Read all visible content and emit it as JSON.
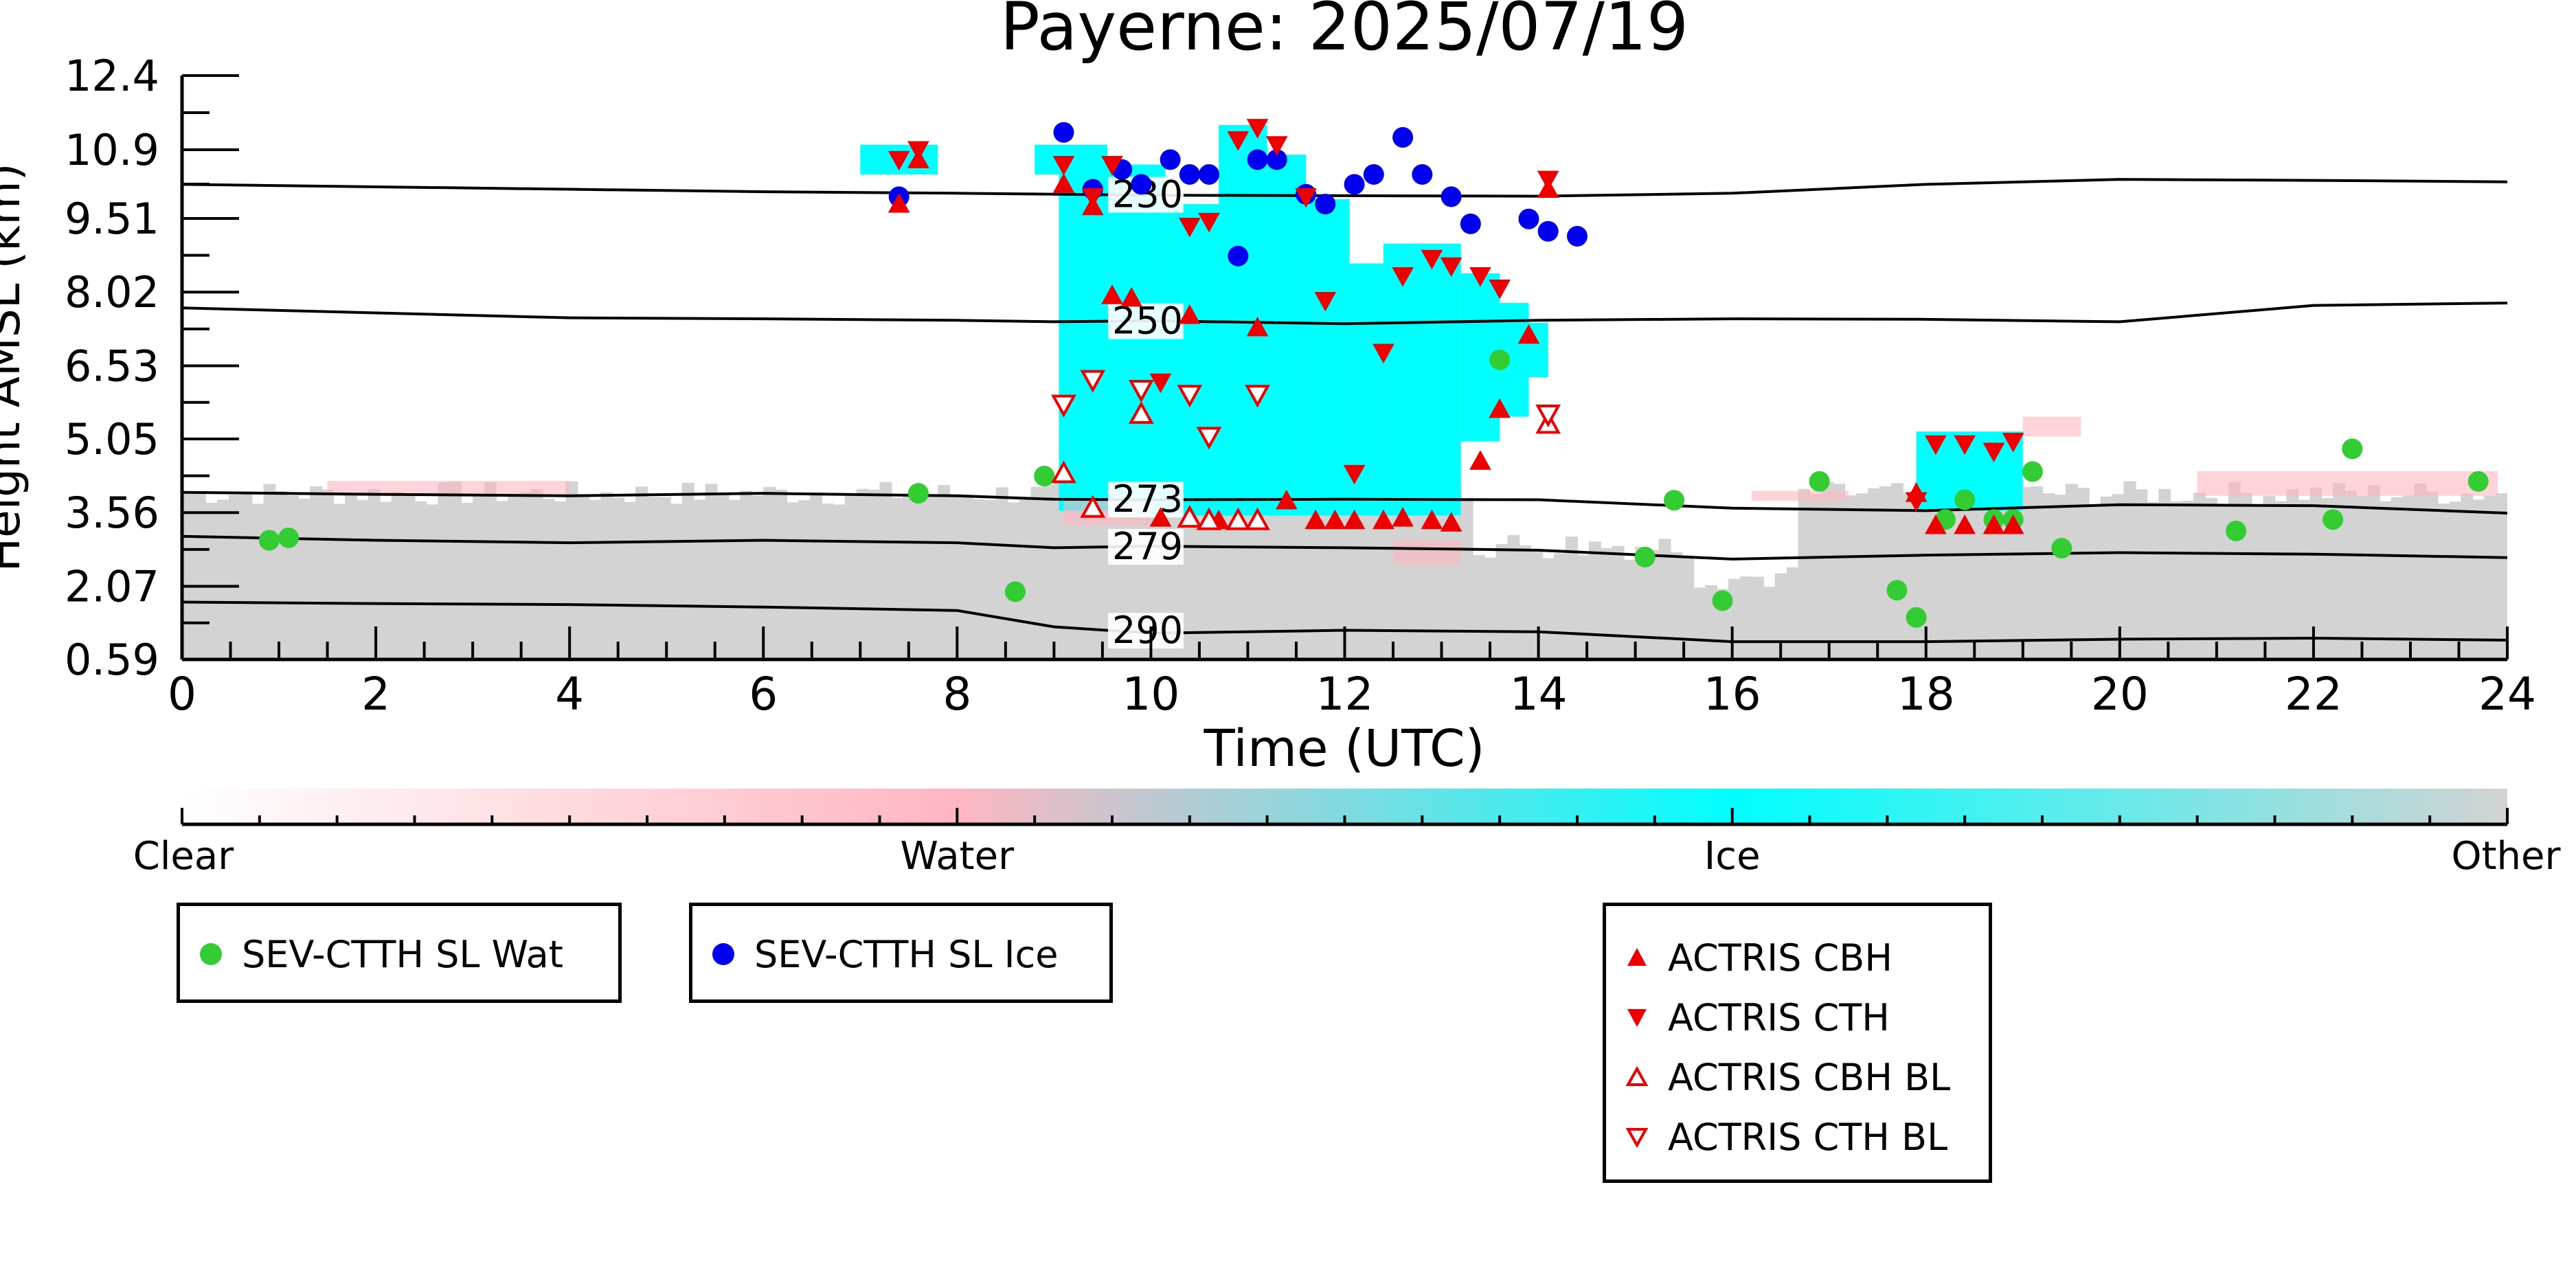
{
  "chart_data": {
    "type": "scatter",
    "title": "Payerne: 2025/07/19",
    "xlabel": "Time (UTC)",
    "ylabel": "Height AMSL (km)",
    "xlim": [
      0,
      24
    ],
    "ylim": [
      0.59,
      12.4
    ],
    "xticks": [
      0,
      2,
      4,
      6,
      8,
      10,
      12,
      14,
      16,
      18,
      20,
      22,
      24
    ],
    "xtick_labels": [
      "0",
      "2",
      "4",
      "6",
      "8",
      "10",
      "12",
      "14",
      "16",
      "18",
      "20",
      "22",
      "24"
    ],
    "yticks": [
      0.59,
      2.07,
      3.56,
      5.05,
      6.53,
      8.02,
      9.51,
      10.9,
      12.4
    ],
    "ytick_labels": [
      "0.59",
      "2.07",
      "3.56",
      "5.05",
      "6.53",
      "8.02",
      "9.51",
      "10.9",
      "12.4"
    ],
    "isotherms": [
      {
        "label": "230",
        "x": [
          0,
          2,
          4,
          6,
          8,
          9,
          10,
          12,
          14,
          16,
          18,
          20,
          22,
          24
        ],
        "y": [
          10.2,
          10.15,
          10.1,
          10.05,
          10.02,
          10.0,
          9.98,
          9.97,
          9.96,
          10.02,
          10.2,
          10.3,
          10.28,
          10.25
        ],
        "label_x": 9.6
      },
      {
        "label": "250",
        "x": [
          0,
          2,
          4,
          6,
          8,
          9,
          10,
          12,
          14,
          16,
          18,
          20,
          22,
          24
        ],
        "y": [
          7.7,
          7.6,
          7.5,
          7.48,
          7.45,
          7.42,
          7.44,
          7.38,
          7.45,
          7.48,
          7.47,
          7.42,
          7.75,
          7.8
        ],
        "label_x": 9.6
      },
      {
        "label": "273",
        "x": [
          0,
          2,
          4,
          6,
          8,
          9,
          10,
          12,
          14,
          16,
          18,
          20,
          22,
          24
        ],
        "y": [
          3.97,
          3.93,
          3.9,
          3.95,
          3.9,
          3.83,
          3.82,
          3.83,
          3.82,
          3.65,
          3.6,
          3.72,
          3.7,
          3.55
        ],
        "label_x": 9.6
      },
      {
        "label": "279",
        "x": [
          0,
          2,
          4,
          6,
          8,
          9,
          10,
          12,
          14,
          16,
          18,
          20,
          22,
          24
        ],
        "y": [
          3.08,
          3.0,
          2.95,
          3.0,
          2.95,
          2.85,
          2.88,
          2.85,
          2.8,
          2.62,
          2.7,
          2.75,
          2.72,
          2.65
        ],
        "label_x": 9.6
      },
      {
        "label": "290",
        "x": [
          0,
          2,
          4,
          6,
          8,
          9,
          10,
          12,
          14,
          16,
          18,
          20,
          22,
          24
        ],
        "y": [
          1.75,
          1.72,
          1.7,
          1.65,
          1.58,
          1.25,
          1.12,
          1.18,
          1.15,
          0.95,
          0.95,
          1.0,
          1.02,
          0.98
        ],
        "label_x": 9.6
      }
    ],
    "series": [
      {
        "name": "SEV-CTTH SL Wat",
        "color": "#33cc33",
        "marker": "circle",
        "x": [
          0.9,
          1.1,
          7.6,
          8.6,
          8.9,
          13.6,
          15.1,
          15.4,
          15.9,
          16.9,
          17.7,
          17.9,
          18.2,
          18.4,
          18.7,
          18.9,
          19.1,
          19.4,
          21.2,
          22.2,
          22.4,
          23.7
        ],
        "y": [
          3.0,
          3.05,
          3.95,
          1.96,
          4.3,
          6.65,
          2.66,
          3.81,
          1.78,
          4.19,
          1.99,
          1.44,
          3.42,
          3.82,
          3.42,
          3.42,
          4.39,
          2.84,
          3.19,
          3.42,
          4.85,
          4.19
        ]
      },
      {
        "name": "SEV-CTTH SL Ice",
        "color": "#0000ee",
        "marker": "circle",
        "x": [
          7.4,
          9.1,
          9.4,
          9.7,
          9.9,
          10.2,
          10.4,
          10.6,
          10.9,
          11.1,
          11.3,
          11.6,
          11.8,
          12.1,
          12.3,
          12.6,
          12.8,
          13.1,
          13.3,
          13.9,
          14.1,
          14.4
        ],
        "y": [
          9.95,
          11.25,
          10.1,
          10.5,
          10.2,
          10.7,
          10.4,
          10.4,
          8.75,
          10.7,
          10.7,
          10.0,
          9.8,
          10.2,
          10.4,
          11.15,
          10.4,
          9.95,
          9.4,
          9.5,
          9.25,
          9.15
        ]
      },
      {
        "name": "ACTRIS CBH",
        "color": "#ee0000",
        "marker": "triangle-up",
        "filled": true,
        "x": [
          7.4,
          7.6,
          9.1,
          9.4,
          9.6,
          9.8,
          10.1,
          10.4,
          10.7,
          10.9,
          11.1,
          11.4,
          11.7,
          11.9,
          12.1,
          12.4,
          12.6,
          12.9,
          13.1,
          13.4,
          13.6,
          13.9,
          14.1,
          17.9,
          18.1,
          18.4,
          18.7,
          18.9
        ],
        "y": [
          9.8,
          10.7,
          10.2,
          9.75,
          7.95,
          7.9,
          3.45,
          7.55,
          3.4,
          3.4,
          7.3,
          3.8,
          3.4,
          3.4,
          3.4,
          3.4,
          3.45,
          3.4,
          3.35,
          4.6,
          5.65,
          7.15,
          10.1,
          3.95,
          3.3,
          3.3,
          3.3,
          3.3
        ]
      },
      {
        "name": "ACTRIS CTH",
        "color": "#ee0000",
        "marker": "triangle-down",
        "filled": true,
        "x": [
          7.4,
          7.6,
          9.1,
          9.4,
          9.6,
          10.1,
          10.4,
          10.6,
          10.9,
          11.1,
          11.3,
          11.6,
          11.8,
          12.1,
          12.4,
          12.6,
          12.9,
          13.1,
          13.4,
          13.6,
          14.1,
          17.9,
          18.1,
          18.4,
          18.7,
          18.9
        ],
        "y": [
          10.7,
          10.9,
          10.6,
          9.95,
          10.6,
          6.2,
          9.35,
          9.45,
          11.1,
          11.35,
          11.0,
          9.95,
          7.85,
          4.35,
          6.8,
          8.35,
          8.7,
          8.55,
          8.35,
          8.1,
          10.3,
          3.8,
          4.95,
          4.95,
          4.8,
          5.0
        ]
      },
      {
        "name": "ACTRIS CBH BL",
        "color": "#ee0000",
        "marker": "triangle-up",
        "filled": false,
        "x": [
          9.1,
          9.4,
          9.9,
          10.4,
          10.6,
          10.9,
          11.1,
          14.1
        ],
        "y": [
          4.35,
          3.65,
          5.55,
          3.45,
          3.4,
          3.4,
          3.4,
          5.35
        ]
      },
      {
        "name": "ACTRIS CTH BL",
        "color": "#ee0000",
        "marker": "triangle-down",
        "filled": false,
        "x": [
          9.1,
          9.4,
          9.9,
          10.4,
          10.6,
          11.1,
          14.1
        ],
        "y": [
          5.75,
          6.25,
          6.05,
          5.95,
          5.1,
          5.95,
          5.55
        ]
      }
    ],
    "colorbar": {
      "labels": [
        "Clear",
        "Water",
        "Ice",
        "Other"
      ],
      "colors": [
        "#ffffff",
        "#ffb6c1",
        "#00ffff",
        "#d3d3d3"
      ]
    },
    "legends": [
      {
        "entries": [
          "SEV-CTTH SL Wat"
        ]
      },
      {
        "entries": [
          "SEV-CTTH SL Ice"
        ]
      },
      {
        "entries": [
          "ACTRIS CBH",
          "ACTRIS CTH",
          "ACTRIS CBH BL",
          "ACTRIS CTH BL"
        ]
      }
    ],
    "grid": false
  }
}
